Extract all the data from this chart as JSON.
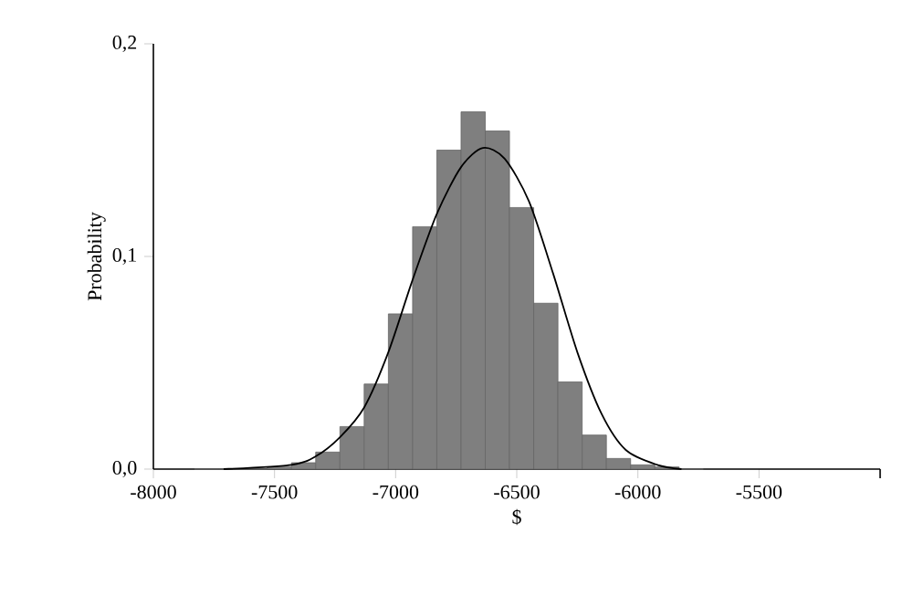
{
  "chart_data": {
    "type": "histogram",
    "xlabel": "$",
    "ylabel": "Probability",
    "xlim": [
      -8000,
      -5000
    ],
    "ylim": [
      0,
      0.2
    ],
    "xticks": [
      -8000,
      -7500,
      -7000,
      -6500,
      -6000,
      -5500
    ],
    "yticks": [
      {
        "value": 0,
        "label": "0,0"
      },
      {
        "value": 0.1,
        "label": "0,1"
      },
      {
        "value": 0.2,
        "label": "0,2"
      }
    ],
    "grid": false,
    "series": [
      {
        "color": "#7f7f7f",
        "bins": [
          -7830,
          -7730,
          -7630,
          -7530,
          -7430,
          -7330,
          -7230,
          -7130,
          -7030,
          -6930,
          -6830,
          -6730,
          -6630,
          -6530,
          -6430,
          -6330,
          -6230,
          -6130,
          -6030,
          -5930,
          -5830,
          -5730
        ],
        "values": [
          0,
          0,
          0,
          0.001,
          0.003,
          0.008,
          0.02,
          0.04,
          0.073,
          0.114,
          0.15,
          0.168,
          0.159,
          0.123,
          0.078,
          0.041,
          0.016,
          0.005,
          0.002,
          0.001,
          0
        ]
      },
      {
        "type": "line",
        "color": "#000000",
        "x": [
          -7710,
          -7430,
          -7330,
          -7230,
          -7130,
          -7030,
          -6930,
          -6830,
          -6730,
          -6640,
          -6550,
          -6450,
          -6350,
          -6250,
          -6150,
          -6050,
          -5920,
          -5820
        ],
        "values": [
          0,
          0.002,
          0.006,
          0.015,
          0.029,
          0.055,
          0.089,
          0.12,
          0.142,
          0.151,
          0.146,
          0.126,
          0.092,
          0.055,
          0.026,
          0.009,
          0.002,
          0
        ]
      }
    ]
  }
}
